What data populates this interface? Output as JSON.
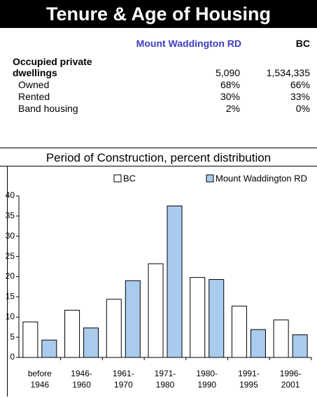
{
  "title": "Tenure & Age of Housing",
  "table": {
    "header": [
      "Mount Waddington RD",
      "BC"
    ],
    "rows": [
      [
        "Occupied private dwellings",
        "5,090",
        "1,534,335"
      ],
      [
        "Owned",
        "68%",
        "66%"
      ],
      [
        "Rented",
        "30%",
        "33%"
      ],
      [
        "Band housing",
        "2%",
        "0%"
      ]
    ]
  },
  "chart_data": {
    "type": "bar",
    "title": "Period of Construction, percent distribution",
    "categories": [
      "before 1946",
      "1946-1960",
      "1961-1970",
      "1971-1980",
      "1980-1990",
      "1991-1995",
      "1996-2001"
    ],
    "series": [
      {
        "name": "BC",
        "color": "#ffffff",
        "values": [
          8.8,
          11.7,
          14.4,
          23.2,
          19.8,
          12.7,
          9.3
        ]
      },
      {
        "name": "Mount Waddington RD",
        "color": "#a9cbee",
        "values": [
          4.3,
          7.3,
          19.0,
          37.5,
          19.3,
          6.9,
          5.6
        ]
      }
    ],
    "ylim": [
      0,
      40
    ],
    "yticks": [
      0,
      5,
      10,
      15,
      20,
      25,
      30,
      35,
      40
    ],
    "legend": "top",
    "grid": false
  }
}
